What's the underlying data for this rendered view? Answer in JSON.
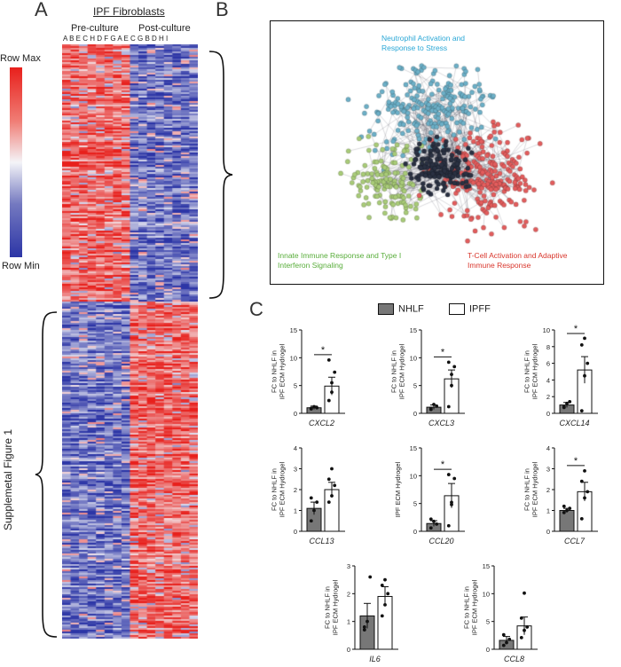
{
  "panels": {
    "a": "A",
    "b": "B",
    "c": "C"
  },
  "heatmap": {
    "title": "IPF Fibroblasts",
    "pre_label": "Pre-culture",
    "post_label": "Post-culture",
    "sample_letters": "A B E C H D F G A E C G B D H I",
    "scale_max": "Row Max",
    "scale_min": "Row Min",
    "side_label": "Supplemetal Figure 1",
    "colors": {
      "high": "#e8201c",
      "mid": "#f4f4f8",
      "low": "#2c35a6"
    }
  },
  "network": {
    "neutrophil": "Neutrophil Activation and Response to Stress",
    "innate": "Innate Immune Response and Type I Interferon Signaling",
    "tcell": "T-Cell Activation and Adaptive Immune Response",
    "colors": {
      "neutrophil": "#6cb0c8",
      "innate": "#a9cc78",
      "tcell": "#e45d5d",
      "core": "#2a3142"
    }
  },
  "legend": {
    "nhlf": "NHLF",
    "ipff": "IPFF"
  },
  "chart_data": [
    {
      "type": "bar",
      "gene": "CXCL2",
      "ylabel": "FC to NHLF in IPF ECM Hydrogel",
      "categories": [
        "NHLF",
        "IPFF"
      ],
      "values": [
        1.0,
        4.9
      ],
      "errors": [
        0.3,
        1.6
      ],
      "ylim": [
        0,
        15
      ],
      "yticks": [
        0,
        5,
        10,
        15
      ],
      "points": [
        [
          0.8,
          1.2,
          1.0,
          0.9
        ],
        [
          2.3,
          5.5,
          7.4,
          9.6,
          3.8
        ]
      ],
      "significance": "*"
    },
    {
      "type": "bar",
      "gene": "CXCL3",
      "ylabel": "FC to NHLF in IPF ECM Hydrogel",
      "categories": [
        "NHLF",
        "IPFF"
      ],
      "values": [
        1.1,
        6.2
      ],
      "errors": [
        0.4,
        1.6
      ],
      "ylim": [
        0,
        15
      ],
      "yticks": [
        0,
        5,
        10,
        15
      ],
      "points": [
        [
          0.7,
          1.6,
          1.3,
          0.9
        ],
        [
          1.2,
          5.0,
          8.4,
          9.2,
          7.0
        ]
      ],
      "significance": "*"
    },
    {
      "type": "bar",
      "gene": "CXCL14",
      "ylabel": "FC to NHLF in IPF ECM Hydrogel",
      "categories": [
        "NHLF",
        "IPFF"
      ],
      "values": [
        1.0,
        5.2
      ],
      "errors": [
        0.3,
        1.6
      ],
      "ylim": [
        0,
        10
      ],
      "yticks": [
        0,
        2,
        4,
        6,
        8,
        10
      ],
      "points": [
        [
          0.7,
          1.2,
          1.4,
          0.8
        ],
        [
          0.3,
          4.5,
          6.0,
          8.2,
          9.0
        ]
      ],
      "significance": "*"
    },
    {
      "type": "bar",
      "gene": "CCL13",
      "ylabel": "FC to NHLF in IPF ECM Hydrogel",
      "categories": [
        "NHLF",
        "IPFF"
      ],
      "values": [
        1.1,
        2.0
      ],
      "errors": [
        0.3,
        0.35
      ],
      "ylim": [
        0,
        4
      ],
      "yticks": [
        0,
        1,
        2,
        3,
        4
      ],
      "points": [
        [
          0.5,
          1.0,
          1.4,
          1.6
        ],
        [
          1.4,
          1.7,
          2.2,
          2.5,
          3.0
        ]
      ],
      "significance": ""
    },
    {
      "type": "bar",
      "gene": "CCL20",
      "ylabel": "IPF ECM Hydrogel",
      "categories": [
        "NHLF",
        "IPFF"
      ],
      "values": [
        1.4,
        6.4
      ],
      "errors": [
        0.5,
        2.2
      ],
      "ylim": [
        0,
        15
      ],
      "yticks": [
        0,
        5,
        10,
        15
      ],
      "points": [
        [
          0.6,
          1.8,
          1.3,
          2.2
        ],
        [
          1.0,
          5.2,
          9.5,
          10.2,
          4.8
        ]
      ],
      "significance": "*"
    },
    {
      "type": "bar",
      "gene": "CCL7",
      "ylabel": "FC to NHLF in IPF ECM Hydrogel",
      "categories": [
        "NHLF",
        "IPFF"
      ],
      "values": [
        1.0,
        1.9
      ],
      "errors": [
        0.1,
        0.45
      ],
      "ylim": [
        0,
        4
      ],
      "yticks": [
        0,
        1,
        2,
        3,
        4
      ],
      "points": [
        [
          0.9,
          1.0,
          1.1,
          1.2
        ],
        [
          0.6,
          1.6,
          1.9,
          2.4,
          2.9
        ]
      ],
      "significance": "*"
    },
    {
      "type": "bar",
      "gene": "IL6",
      "ylabel": "FC to NHLF in IPF ECM Hydrogel",
      "categories": [
        "NHLF",
        "IPFF"
      ],
      "values": [
        1.2,
        1.9
      ],
      "errors": [
        0.45,
        0.35
      ],
      "ylim": [
        0,
        3
      ],
      "yticks": [
        0,
        1,
        2,
        3
      ],
      "points": [
        [
          0.7,
          1.0,
          2.6,
          0.8
        ],
        [
          1.2,
          1.6,
          2.0,
          2.3,
          2.5
        ]
      ],
      "significance": ""
    },
    {
      "type": "bar",
      "gene": "CCL8",
      "ylabel": "FC to NHLF in IPF ECM Hydrogel",
      "categories": [
        "NHLF",
        "IPFF"
      ],
      "values": [
        1.6,
        4.2
      ],
      "errors": [
        0.7,
        1.6
      ],
      "ylim": [
        0,
        15
      ],
      "yticks": [
        0,
        5,
        10,
        15
      ],
      "points": [
        [
          0.7,
          1.2,
          1.8,
          2.6
        ],
        [
          2.1,
          3.4,
          4.0,
          5.6,
          10.1
        ]
      ],
      "significance": ""
    }
  ]
}
